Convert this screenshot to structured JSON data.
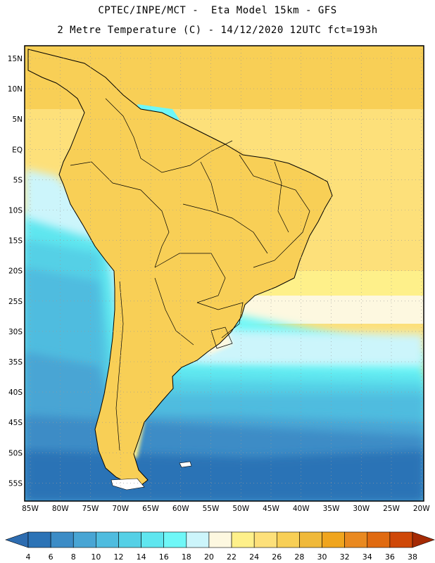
{
  "header": {
    "line1": "CPTEC/INPE/MCT -  Eta Model 15km - GFS",
    "line2": "2 Metre Temperature (C) - 14/12/2020 12UTC fct=193h"
  },
  "map": {
    "lat_labels": [
      "15N",
      "10N",
      "5N",
      "EQ",
      "5S",
      "10S",
      "15S",
      "20S",
      "25S",
      "30S",
      "35S",
      "40S",
      "45S",
      "50S",
      "55S"
    ],
    "lon_labels": [
      "85W",
      "80W",
      "75W",
      "70W",
      "65W",
      "60W",
      "55W",
      "50W",
      "45W",
      "40W",
      "35W",
      "30W",
      "25W",
      "20W"
    ]
  },
  "colorbar": {
    "labels": [
      "4",
      "6",
      "8",
      "10",
      "12",
      "14",
      "16",
      "18",
      "20",
      "22",
      "24",
      "26",
      "28",
      "30",
      "32",
      "34",
      "36",
      "38"
    ],
    "colors": [
      "#1f5ea8",
      "#2c73b6",
      "#3c8cc6",
      "#48a5d4",
      "#4fbcdf",
      "#55d0e6",
      "#5fe6ef",
      "#6ff7f7",
      "#ccf5fb",
      "#fdf8e0",
      "#fef08a",
      "#fde07a",
      "#f8cf56",
      "#f0b93a",
      "#f0a51e",
      "#e98920",
      "#e06a10",
      "#cf4808",
      "#a82a02"
    ],
    "under_color": "#2d6cb0",
    "over_color": "#a52a04"
  },
  "chart_data": {
    "type": "heatmap",
    "title": "2 Metre Temperature (C)",
    "model": "Eta Model 15km - GFS",
    "run": "14/12/2020 12UTC",
    "forecast_hour": 193,
    "lon_range_deg": [
      -86,
      -19.5
    ],
    "lat_range_deg": [
      -59.5,
      17
    ],
    "colorbar_range_C": [
      4,
      38
    ],
    "colorbar_step_C": 2
  }
}
